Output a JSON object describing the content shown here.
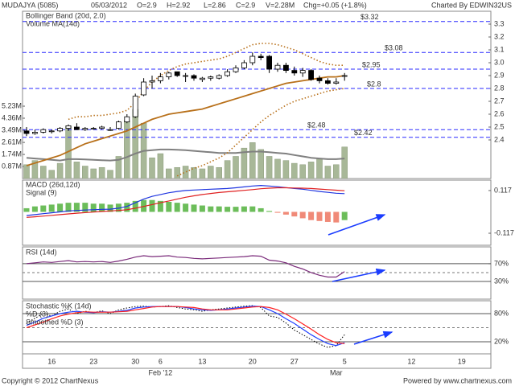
{
  "header": {
    "symbol": "MUDAJYA (5085)",
    "date": "05/03/2012",
    "fields": [
      "O=2.9",
      "H=2.92",
      "L=2.86",
      "C=2.9",
      "V=2.28M",
      "Chg=+0.05 (+1.8%)"
    ],
    "credit": "Charted By EDWIN32US"
  },
  "footer": {
    "copyright": "Copyright © 2012 ChartNexus",
    "powered": "Powered by www.chartnexus.com"
  },
  "chart_data": [
    {
      "type": "candlestick",
      "categories": [
        null,
        null,
        null,
        "16",
        null,
        null,
        null,
        null,
        "23",
        null,
        null,
        null,
        null,
        "30",
        null,
        null,
        "6",
        null,
        null,
        null,
        null,
        "13",
        null,
        null,
        null,
        null,
        null,
        "20",
        null,
        null,
        null,
        null,
        "27",
        null,
        null,
        null,
        null,
        null,
        "5",
        null,
        null,
        null,
        null,
        null,
        null,
        null,
        "12",
        null,
        null,
        null,
        null,
        null,
        "19",
        null,
        null,
        null
      ],
      "month_labels": [
        null,
        null,
        null,
        null,
        null,
        null,
        null,
        null,
        null,
        null,
        null,
        null,
        null,
        null,
        null,
        null,
        "Feb '12",
        null,
        null,
        null,
        null,
        null,
        null,
        null,
        null,
        null,
        null,
        null,
        null,
        null,
        null,
        null,
        null,
        null,
        null,
        null,
        null,
        "Mar",
        null,
        null,
        null,
        null,
        null,
        null,
        null,
        null,
        null,
        null,
        null,
        null,
        null,
        null,
        null,
        null,
        null,
        null
      ],
      "open": [
        2.47,
        2.45,
        2.46,
        2.47,
        2.47,
        2.49,
        2.5,
        2.48,
        2.49,
        2.49,
        2.48,
        2.49,
        2.54,
        2.58,
        2.75,
        2.85,
        2.86,
        2.89,
        2.93,
        2.9,
        2.9,
        2.87,
        2.88,
        2.88,
        2.9,
        2.93,
        2.96,
        3.0,
        3.05,
        3.05,
        2.95,
        2.98,
        2.94,
        2.92,
        2.94,
        2.88,
        2.86,
        2.84,
        2.9,
        null,
        null,
        null,
        null,
        null,
        null,
        null,
        null,
        null,
        null,
        null,
        null,
        null,
        null,
        null,
        null,
        null
      ],
      "high": [
        2.5,
        2.48,
        2.49,
        2.48,
        2.5,
        2.52,
        2.53,
        2.5,
        2.5,
        2.51,
        2.5,
        2.55,
        2.6,
        2.76,
        2.88,
        2.9,
        2.92,
        2.93,
        2.93,
        2.92,
        2.91,
        2.89,
        2.9,
        2.91,
        2.95,
        2.98,
        3.02,
        3.08,
        3.07,
        3.06,
        3.0,
        3.0,
        2.97,
        2.96,
        2.95,
        2.9,
        2.88,
        2.88,
        2.92,
        null,
        null,
        null,
        null,
        null,
        null,
        null,
        null,
        null,
        null,
        null,
        null,
        null,
        null,
        null,
        null,
        null
      ],
      "low": [
        2.43,
        2.44,
        2.45,
        2.45,
        2.46,
        2.47,
        2.48,
        2.47,
        2.48,
        2.48,
        2.47,
        2.48,
        2.53,
        2.57,
        2.74,
        2.8,
        2.84,
        2.87,
        2.89,
        2.85,
        2.86,
        2.85,
        2.86,
        2.87,
        2.89,
        2.92,
        2.95,
        2.98,
        3.02,
        2.92,
        2.93,
        2.92,
        2.9,
        2.89,
        2.86,
        2.84,
        2.83,
        2.83,
        2.86,
        null,
        null,
        null,
        null,
        null,
        null,
        null,
        null,
        null,
        null,
        null,
        null,
        null,
        null,
        null,
        null,
        null
      ],
      "close": [
        2.45,
        2.46,
        2.48,
        2.47,
        2.49,
        2.51,
        2.48,
        2.49,
        2.49,
        2.5,
        2.48,
        2.54,
        2.58,
        2.74,
        2.85,
        2.86,
        2.89,
        2.92,
        2.9,
        2.9,
        2.88,
        2.88,
        2.89,
        2.9,
        2.93,
        2.96,
        3.0,
        3.05,
        3.04,
        2.95,
        2.98,
        2.94,
        2.92,
        2.94,
        2.87,
        2.86,
        2.84,
        2.85,
        2.9,
        null,
        null,
        null,
        null,
        null,
        null,
        null,
        null,
        null,
        null,
        null,
        null,
        null,
        null,
        null,
        null,
        null
      ],
      "up_color": "#ffffff",
      "down_color": "#000000",
      "ylim": [
        2.1,
        3.4
      ],
      "yticks": [
        3.3,
        3.2,
        3.1,
        {
          "value": 3,
          "label": "3.0"
        },
        2.9,
        2.8,
        2.7,
        2.6,
        2.5,
        2.4
      ],
      "y2lim": [
        0,
        12090000
      ],
      "y2ticks": [
        {
          "value": 870000,
          "label": "0.87M"
        },
        {
          "value": 1740000,
          "label": "1.74M"
        },
        {
          "value": 2610000,
          "label": "2.61M"
        },
        {
          "value": 3490000,
          "label": "3.49M"
        },
        {
          "value": 4360000,
          "label": "4.36M"
        },
        {
          "value": 5230000,
          "label": "5.23M"
        }
      ],
      "volume": {
        "axis": "y2",
        "color": "#a8b898",
        "values": [
          1000000,
          1300000,
          900000,
          600000,
          1100000,
          3800000,
          1200000,
          900000,
          700000,
          800000,
          600000,
          1600000,
          4200000,
          5000000,
          4000000,
          1500000,
          1800000,
          700000,
          800000,
          900000,
          800000,
          700000,
          900000,
          800000,
          1300000,
          1600000,
          2200000,
          2600000,
          2100000,
          1600000,
          1400000,
          1300000,
          1100000,
          1000000,
          1200000,
          1400000,
          900000,
          1000000,
          2280000,
          null,
          null,
          null,
          null,
          null,
          null,
          null,
          null,
          null,
          null,
          null,
          null,
          null,
          null,
          null,
          null,
          null
        ]
      },
      "volume_ma": {
        "name": "Volume MA(14d)",
        "axis": "y2",
        "color": "#808080",
        "values": [
          1500000,
          1450000,
          1400000,
          1350000,
          1300000,
          1400000,
          1400000,
          1380000,
          1350000,
          1320000,
          1300000,
          1350000,
          1550000,
          1800000,
          2000000,
          2050000,
          2100000,
          2100000,
          2080000,
          2050000,
          2000000,
          1950000,
          1900000,
          1850000,
          1850000,
          1850000,
          1900000,
          1950000,
          1950000,
          1900000,
          1850000,
          1800000,
          1700000,
          1600000,
          1500000,
          1450000,
          1400000,
          1400000,
          1450000,
          null,
          null,
          null,
          null,
          null,
          null,
          null,
          null,
          null,
          null,
          null,
          null,
          null,
          null,
          null,
          null,
          null
        ]
      },
      "bollinger": {
        "name": "Bollinger Band (20d, 2.0)",
        "color": "#b8701a",
        "upper": [
          null,
          null,
          null,
          null,
          null,
          2.56,
          2.58,
          2.58,
          2.59,
          2.59,
          2.6,
          2.61,
          2.63,
          2.69,
          2.78,
          2.85,
          2.9,
          2.94,
          2.97,
          2.99,
          3.0,
          3.01,
          3.02,
          3.03,
          3.05,
          3.08,
          3.11,
          3.14,
          3.15,
          3.15,
          3.14,
          3.12,
          3.1,
          3.07,
          3.04,
          3.01,
          2.99,
          2.98,
          2.98,
          null,
          null,
          null,
          null,
          null,
          null,
          null,
          null,
          null,
          null,
          null,
          null,
          null,
          null,
          null,
          null,
          null
        ],
        "middle": [
          2.2,
          2.22,
          2.24,
          2.26,
          2.28,
          2.31,
          2.34,
          2.37,
          2.39,
          2.41,
          2.43,
          2.45,
          2.47,
          2.5,
          2.53,
          2.56,
          2.58,
          2.6,
          2.61,
          2.62,
          2.63,
          2.64,
          2.66,
          2.68,
          2.7,
          2.72,
          2.74,
          2.76,
          2.78,
          2.8,
          2.82,
          2.84,
          2.85,
          2.86,
          2.87,
          2.88,
          2.89,
          2.89,
          2.9,
          null,
          null,
          null,
          null,
          null,
          null,
          null,
          null,
          null,
          null,
          null,
          null,
          null,
          null,
          null,
          null,
          null
        ],
        "lower": [
          null,
          null,
          null,
          null,
          null,
          null,
          null,
          null,
          null,
          null,
          null,
          null,
          null,
          null,
          null,
          null,
          null,
          null,
          2.12,
          2.15,
          2.18,
          2.2,
          2.23,
          2.26,
          2.3,
          2.36,
          2.42,
          2.48,
          2.54,
          2.59,
          2.63,
          2.67,
          2.7,
          2.72,
          2.74,
          2.76,
          2.78,
          2.79,
          2.8,
          null,
          null,
          null,
          null,
          null,
          null,
          null,
          null,
          null,
          null,
          null,
          null,
          null,
          null,
          null,
          null,
          null
        ]
      },
      "levels": {
        "color": "#2a2aff",
        "values": [
          3.32,
          3.08,
          2.95,
          2.8,
          2.48,
          2.42
        ],
        "value_labels": [
          "$3.32",
          "$3.08",
          "$2.95",
          "$2.8",
          "$2.48",
          "$2.42"
        ]
      }
    },
    {
      "type": "macd",
      "ylim": [
        -0.183,
        0.174
      ],
      "yticks": [
        0.117,
        -0.117
      ],
      "series": [
        {
          "name": "MACD (26d,12d)",
          "color": "#1f35e0",
          "values": [
            -0.02,
            -0.015,
            -0.01,
            -0.005,
            0,
            0.005,
            0.008,
            0.01,
            0.012,
            0.014,
            0.015,
            0.02,
            0.03,
            0.05,
            0.07,
            0.085,
            0.095,
            0.105,
            0.112,
            0.117,
            0.12,
            0.122,
            0.124,
            0.126,
            0.128,
            0.132,
            0.137,
            0.142,
            0.145,
            0.142,
            0.138,
            0.133,
            0.128,
            0.124,
            0.118,
            0.112,
            0.107,
            0.102,
            0.1,
            null,
            null,
            null,
            null,
            null,
            null,
            null,
            null,
            null,
            null,
            null,
            null,
            null,
            null,
            null,
            null,
            null
          ]
        },
        {
          "name": "Signal (9)",
          "color": "#e02020",
          "values": [
            -0.03,
            -0.027,
            -0.023,
            -0.019,
            -0.015,
            -0.011,
            -0.007,
            -0.004,
            -0.001,
            0.002,
            0.005,
            0.008,
            0.012,
            0.02,
            0.03,
            0.04,
            0.05,
            0.06,
            0.07,
            0.08,
            0.088,
            0.095,
            0.101,
            0.106,
            0.11,
            0.114,
            0.118,
            0.122,
            0.127,
            0.13,
            0.132,
            0.132,
            0.131,
            0.13,
            0.128,
            0.125,
            0.122,
            0.119,
            0.116,
            null,
            null,
            null,
            null,
            null,
            null,
            null,
            null,
            null,
            null,
            null,
            null,
            null,
            null,
            null,
            null,
            null
          ]
        }
      ],
      "histogram": {
        "up_color": "#6cbd5a",
        "down_color": "#f08a78",
        "values": [
          0.02,
          0.03,
          0.035,
          0.04,
          0.045,
          0.05,
          0.05,
          0.05,
          0.045,
          0.045,
          0.04,
          0.045,
          0.05,
          0.06,
          0.065,
          0.065,
          0.06,
          0.055,
          0.05,
          0.045,
          0.04,
          0.035,
          0.03,
          0.03,
          0.028,
          0.028,
          0.03,
          0.03,
          0.02,
          0.005,
          -0.005,
          -0.015,
          -0.025,
          -0.035,
          -0.045,
          -0.05,
          -0.055,
          -0.058,
          -0.045,
          null,
          null,
          null,
          null,
          null,
          null,
          null,
          null,
          null,
          null,
          null,
          null,
          null,
          null,
          null,
          null,
          null
        ]
      }
    },
    {
      "type": "line",
      "ylim": [
        -10,
        108
      ],
      "yticks": [
        {
          "value": 70,
          "label": "70%"
        },
        {
          "value": 30,
          "label": "30%"
        }
      ],
      "grid": true,
      "midline": 50,
      "series": [
        {
          "name": "RSI (14d)",
          "color": "#7a2a7a",
          "values": [
            70,
            72,
            74,
            73,
            75,
            77,
            74,
            75,
            74,
            75,
            73,
            76,
            80,
            85,
            88,
            86,
            87,
            88,
            85,
            84,
            82,
            81,
            82,
            83,
            84,
            85,
            86,
            88,
            87,
            78,
            76,
            72,
            64,
            58,
            50,
            44,
            40,
            40,
            52,
            null,
            null,
            null,
            null,
            null,
            null,
            null,
            null,
            null,
            null,
            null,
            null,
            null,
            null,
            null,
            null,
            null
          ]
        }
      ]
    },
    {
      "type": "line",
      "ylim": [
        -5.7,
        107.4
      ],
      "yticks": [
        {
          "value": 80,
          "label": "80%"
        },
        {
          "value": 20,
          "label": "20%"
        }
      ],
      "grid": true,
      "midline": 50,
      "series": [
        {
          "name": "Stochastic %K (14d)",
          "color": "#000000",
          "dash": "dotted",
          "values": [
            60,
            70,
            80,
            75,
            85,
            90,
            80,
            85,
            82,
            86,
            80,
            88,
            92,
            95,
            96,
            94,
            95,
            97,
            93,
            90,
            88,
            85,
            88,
            90,
            92,
            94,
            96,
            97,
            93,
            75,
            72,
            60,
            45,
            35,
            25,
            15,
            8,
            12,
            35,
            null,
            null,
            null,
            null,
            null,
            null,
            null,
            null,
            null,
            null,
            null,
            null,
            null,
            null,
            null,
            null,
            null
          ]
        },
        {
          "name": "%D (3)",
          "color": "#1f3fff",
          "values": [
            55,
            62,
            70,
            75,
            80,
            83,
            85,
            83,
            82,
            84,
            83,
            85,
            87,
            92,
            94,
            95,
            95,
            95,
            95,
            93,
            90,
            88,
            87,
            88,
            90,
            92,
            94,
            96,
            95,
            88,
            80,
            69,
            59,
            47,
            35,
            25,
            16,
            12,
            18,
            null,
            null,
            null,
            null,
            null,
            null,
            null,
            null,
            null,
            null,
            null,
            null,
            null,
            null,
            null,
            null,
            null
          ]
        },
        {
          "name": "Smoothed %D (3)",
          "color": "#ff2020",
          "values": [
            50,
            56,
            62,
            69,
            75,
            79,
            82,
            84,
            83,
            83,
            83,
            84,
            85,
            88,
            91,
            94,
            95,
            95,
            95,
            94,
            93,
            90,
            88,
            88,
            88,
            90,
            92,
            94,
            95,
            93,
            88,
            79,
            69,
            58,
            47,
            35,
            25,
            18,
            16,
            null,
            null,
            null,
            null,
            null,
            null,
            null,
            null,
            null,
            null,
            null,
            null,
            null,
            null,
            null,
            null,
            null
          ]
        }
      ]
    }
  ]
}
